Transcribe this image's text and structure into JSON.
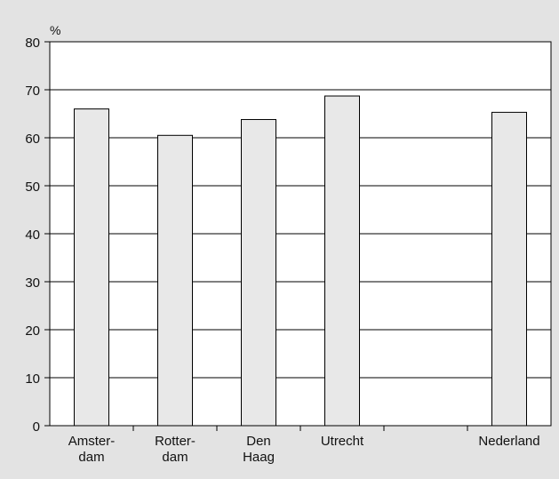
{
  "chart_data": {
    "type": "bar",
    "ylabel": "%",
    "ylim": [
      0,
      80
    ],
    "yticks": [
      0,
      10,
      20,
      30,
      40,
      50,
      60,
      70,
      80
    ],
    "grid": true,
    "categories": [
      {
        "label_lines": [
          "Amster-",
          "dam"
        ],
        "value": 66
      },
      {
        "label_lines": [
          "Rotter-",
          "dam"
        ],
        "value": 60.5
      },
      {
        "label_lines": [
          "Den",
          "Haag"
        ],
        "value": 63.8
      },
      {
        "label_lines": [
          "Utrecht"
        ],
        "value": 68.7
      },
      {
        "label_lines": [
          ""
        ],
        "value": null
      },
      {
        "label_lines": [
          "Nederland"
        ],
        "value": 65.3
      }
    ],
    "colors": {
      "background": "#e3e3e3",
      "plot_area": "#ffffff",
      "bar_fill": "#e8e8e8",
      "bar_stroke": "#000000",
      "grid": "#000000"
    }
  }
}
